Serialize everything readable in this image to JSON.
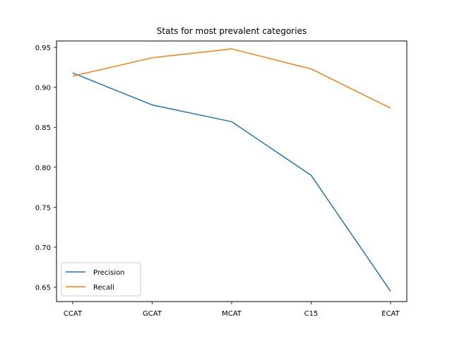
{
  "chart_data": {
    "type": "line",
    "title": "Stats for most prevalent categories",
    "xlabel": "",
    "ylabel": "",
    "categories": [
      "CCAT",
      "GCAT",
      "MCAT",
      "C15",
      "ECAT"
    ],
    "series": [
      {
        "name": "Precision",
        "color": "#1f77b4",
        "values": [
          0.918,
          0.878,
          0.857,
          0.79,
          0.645
        ]
      },
      {
        "name": "Recall",
        "color": "#ff7f0e",
        "values": [
          0.914,
          0.937,
          0.948,
          0.923,
          0.874
        ]
      }
    ],
    "ylim": [
      0.632,
      0.958
    ],
    "yticks": [
      0.65,
      0.7,
      0.75,
      0.8,
      0.85,
      0.9,
      0.95
    ],
    "ytick_labels": [
      "0.65",
      "0.70",
      "0.75",
      "0.80",
      "0.85",
      "0.90",
      "0.95"
    ],
    "grid": false,
    "legend_position": "lower-left"
  }
}
